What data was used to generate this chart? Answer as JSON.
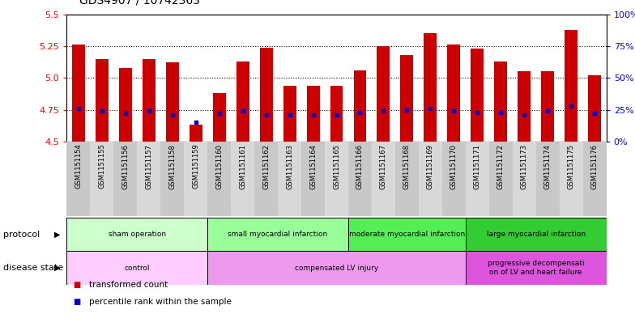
{
  "title": "GDS4907 / 10742363",
  "samples": [
    "GSM1151154",
    "GSM1151155",
    "GSM1151156",
    "GSM1151157",
    "GSM1151158",
    "GSM1151159",
    "GSM1151160",
    "GSM1151161",
    "GSM1151162",
    "GSM1151163",
    "GSM1151164",
    "GSM1151165",
    "GSM1151166",
    "GSM1151167",
    "GSM1151168",
    "GSM1151169",
    "GSM1151170",
    "GSM1151171",
    "GSM1151172",
    "GSM1151173",
    "GSM1151174",
    "GSM1151175",
    "GSM1151176"
  ],
  "bar_values": [
    5.26,
    5.15,
    5.08,
    5.15,
    5.12,
    4.63,
    4.88,
    5.13,
    5.24,
    4.94,
    4.94,
    4.94,
    5.06,
    5.25,
    5.18,
    5.35,
    5.26,
    5.23,
    5.13,
    5.05,
    5.05,
    5.38,
    5.02
  ],
  "blue_values": [
    4.76,
    4.74,
    4.72,
    4.74,
    4.71,
    4.65,
    4.72,
    4.74,
    4.71,
    4.71,
    4.71,
    4.71,
    4.73,
    4.74,
    4.75,
    4.76,
    4.74,
    4.73,
    4.73,
    4.71,
    4.74,
    4.78,
    4.72
  ],
  "ymin": 4.5,
  "ymax": 5.5,
  "yticks_left": [
    4.5,
    4.75,
    5.0,
    5.25,
    5.5
  ],
  "yticks_right_pct": [
    0,
    25,
    50,
    75,
    100
  ],
  "bar_color": "#cc0000",
  "blue_color": "#0000cc",
  "bar_width": 0.55,
  "grid_lines": [
    4.75,
    5.0,
    5.25
  ],
  "protocol_groups": [
    {
      "label": "sham operation",
      "start": 0,
      "end": 5,
      "color": "#ccffcc"
    },
    {
      "label": "small myocardial infarction",
      "start": 6,
      "end": 11,
      "color": "#99ff99"
    },
    {
      "label": "moderate myocardial infarction",
      "start": 12,
      "end": 16,
      "color": "#55ee55"
    },
    {
      "label": "large myocardial infarction",
      "start": 17,
      "end": 22,
      "color": "#33cc33"
    }
  ],
  "disease_groups": [
    {
      "label": "control",
      "start": 0,
      "end": 5,
      "color": "#ffccff"
    },
    {
      "label": "compensated LV injury",
      "start": 6,
      "end": 16,
      "color": "#ee99ee"
    },
    {
      "label": "progressive decompensati\non of LV and heart failure",
      "start": 17,
      "end": 22,
      "color": "#dd55dd"
    }
  ],
  "legend_items": [
    {
      "label": "transformed count",
      "color": "#cc0000"
    },
    {
      "label": "percentile rank within the sample",
      "color": "#0000cc"
    }
  ],
  "xtick_bg_even": "#c8c8c8",
  "xtick_bg_odd": "#d8d8d8",
  "chart_bg": "#ffffff"
}
